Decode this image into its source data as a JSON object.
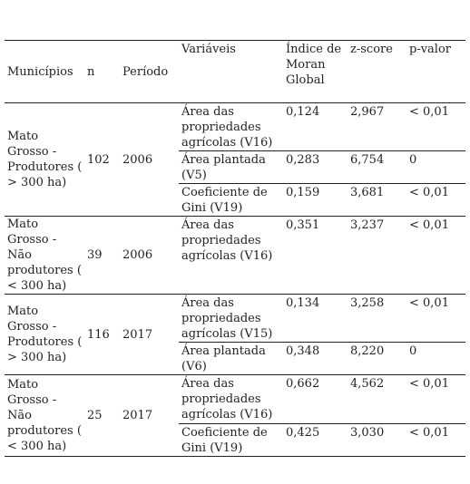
{
  "header": {
    "municipios": "Municípios",
    "n": "n",
    "periodo": "Período",
    "variaveis": "Variáveis",
    "moran": "Índice de Moran Global",
    "zscore": "z-score",
    "pvalor": "p-valor"
  },
  "groups": [
    {
      "municipio": "Mato Grosso - Produtores ( > 300 ha)",
      "n": "102",
      "periodo": "2006",
      "rows": [
        {
          "variavel": "Área das propriedades agrícolas (V16)",
          "moran": "0,124",
          "z": "2,967",
          "p": "< 0,01"
        },
        {
          "variavel": "Área plantada (V5)",
          "moran": "0,283",
          "z": "6,754",
          "p": "0"
        },
        {
          "variavel": "Coeficiente de Gini (V19)",
          "moran": "0,159",
          "z": "3,681",
          "p": "< 0,01"
        }
      ]
    },
    {
      "municipio": "Mato Grosso - Não produtores ( < 300 ha)",
      "n": "39",
      "periodo": "2006",
      "rows": [
        {
          "variavel": "Área das propriedades agrícolas (V16)",
          "moran": "0,351",
          "z": "3,237",
          "p": "< 0,01"
        }
      ]
    },
    {
      "municipio": "Mato Grosso - Produtores ( > 300 ha)",
      "n": "116",
      "periodo": "2017",
      "rows": [
        {
          "variavel": "Área das propriedades agrícolas (V15)",
          "moran": "0,134",
          "z": "3,258",
          "p": "< 0,01"
        },
        {
          "variavel": "Área plantada (V6)",
          "moran": "0,348",
          "z": "8,220",
          "p": "0"
        }
      ]
    },
    {
      "municipio": "Mato Grosso - Não produtores ( < 300 ha)",
      "n": "25",
      "periodo": "2017",
      "rows": [
        {
          "variavel": "Área das propriedades agrícolas (V16)",
          "moran": "0,662",
          "z": "4,562",
          "p": "< 0,01"
        },
        {
          "variavel": "Coeficiente de Gini (V19)",
          "moran": "0,425",
          "z": "3,030",
          "p": "< 0,01"
        }
      ]
    }
  ]
}
